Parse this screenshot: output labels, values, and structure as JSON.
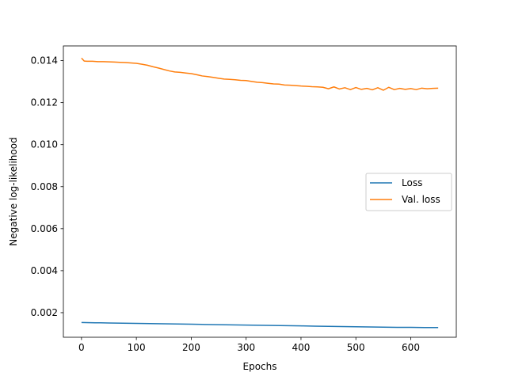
{
  "chart_data": {
    "type": "line",
    "title": "",
    "xlabel": "Epochs",
    "ylabel": "Negative log-likelihood",
    "xlim": [
      -33,
      683
    ],
    "ylim": [
      0.00083,
      0.0147
    ],
    "xticks": [
      0,
      100,
      200,
      300,
      400,
      500,
      600
    ],
    "xtick_labels": [
      "0",
      "100",
      "200",
      "300",
      "400",
      "500",
      "600"
    ],
    "yticks": [
      0.002,
      0.004,
      0.006,
      0.008,
      0.01,
      0.012,
      0.014
    ],
    "ytick_labels": [
      "0.002",
      "0.004",
      "0.006",
      "0.008",
      "0.010",
      "0.012",
      "0.014"
    ],
    "grid": false,
    "legend_position": "center-right",
    "series": [
      {
        "name": "Loss",
        "color": "#1f77b4",
        "x": [
          0,
          25,
          50,
          75,
          100,
          125,
          150,
          175,
          200,
          225,
          250,
          275,
          300,
          325,
          350,
          375,
          400,
          425,
          450,
          475,
          500,
          525,
          550,
          575,
          600,
          625,
          650
        ],
        "y": [
          0.00153,
          0.00152,
          0.00151,
          0.0015,
          0.00149,
          0.00148,
          0.00147,
          0.00146,
          0.00145,
          0.00144,
          0.00143,
          0.00142,
          0.00141,
          0.0014,
          0.00139,
          0.00138,
          0.00137,
          0.00136,
          0.00135,
          0.00134,
          0.00133,
          0.00132,
          0.00131,
          0.0013,
          0.0013,
          0.00129,
          0.00129
        ]
      },
      {
        "name": "Val. loss",
        "color": "#ff7f0e",
        "x": [
          0,
          5,
          10,
          20,
          30,
          40,
          50,
          60,
          70,
          80,
          90,
          100,
          110,
          120,
          130,
          140,
          150,
          160,
          170,
          180,
          190,
          200,
          210,
          220,
          230,
          240,
          250,
          260,
          270,
          280,
          290,
          300,
          310,
          320,
          330,
          340,
          350,
          360,
          370,
          380,
          390,
          400,
          410,
          420,
          430,
          440,
          450,
          460,
          470,
          480,
          490,
          500,
          510,
          520,
          530,
          540,
          550,
          560,
          570,
          580,
          590,
          600,
          610,
          620,
          630,
          640,
          650
        ],
        "y": [
          0.01412,
          0.01398,
          0.01397,
          0.01397,
          0.01395,
          0.01395,
          0.01394,
          0.01393,
          0.01392,
          0.01391,
          0.01389,
          0.01387,
          0.01383,
          0.01378,
          0.01371,
          0.01365,
          0.01358,
          0.01351,
          0.01346,
          0.01344,
          0.01341,
          0.01338,
          0.01333,
          0.01327,
          0.01324,
          0.0132,
          0.01316,
          0.01312,
          0.01311,
          0.01309,
          0.01306,
          0.01305,
          0.01301,
          0.01297,
          0.01295,
          0.01292,
          0.01289,
          0.01288,
          0.01284,
          0.01283,
          0.01281,
          0.01279,
          0.01278,
          0.01276,
          0.01275,
          0.01273,
          0.01266,
          0.01275,
          0.01265,
          0.01271,
          0.01262,
          0.01272,
          0.01263,
          0.01268,
          0.01261,
          0.01271,
          0.01259,
          0.01273,
          0.01262,
          0.01268,
          0.01263,
          0.01267,
          0.01262,
          0.01269,
          0.01266,
          0.01268,
          0.01269
        ]
      }
    ]
  }
}
